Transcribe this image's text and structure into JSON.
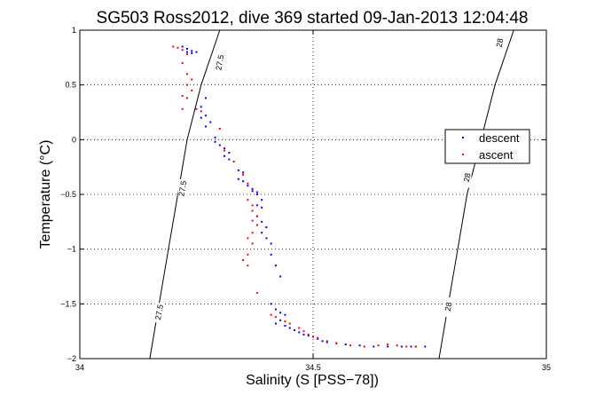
{
  "chart_data": {
    "type": "scatter",
    "title": "SG503 Ross2012, dive 369 started 09-Jan-2013 12:04:48",
    "xlabel": "Salinity (S [PSS−78])",
    "ylabel": "Temperature (°C)",
    "xlim": [
      34,
      35
    ],
    "ylim": [
      -2,
      1
    ],
    "xticks": [
      34,
      34.5,
      35
    ],
    "xtick_labels": [
      "34",
      "34.5",
      "35"
    ],
    "yticks": [
      -2,
      -1.5,
      -1,
      -0.5,
      0,
      0.5,
      1
    ],
    "ytick_labels": [
      "−2",
      "−1.5",
      "−1",
      "−0.5",
      "0",
      "0.5",
      "1"
    ],
    "grid": true,
    "legend_position": "right",
    "series": [
      {
        "name": "descent",
        "color": "#0000ff",
        "points": [
          [
            34.22,
            0.85
          ],
          [
            34.23,
            0.83
          ],
          [
            34.24,
            0.81
          ],
          [
            34.25,
            0.8
          ],
          [
            34.24,
            0.79
          ],
          [
            34.23,
            0.8
          ],
          [
            34.27,
            0.38
          ],
          [
            34.26,
            0.3
          ],
          [
            34.27,
            0.22
          ],
          [
            34.26,
            0.2
          ],
          [
            34.28,
            0.16
          ],
          [
            34.27,
            0.12
          ],
          [
            34.29,
            0.02
          ],
          [
            34.29,
            -0.02
          ],
          [
            34.3,
            -0.05
          ],
          [
            34.31,
            -0.08
          ],
          [
            34.32,
            -0.12
          ],
          [
            34.31,
            -0.15
          ],
          [
            34.32,
            -0.18
          ],
          [
            34.33,
            -0.2
          ],
          [
            34.34,
            -0.28
          ],
          [
            34.35,
            -0.3
          ],
          [
            34.34,
            -0.36
          ],
          [
            34.35,
            -0.38
          ],
          [
            34.36,
            -0.42
          ],
          [
            34.37,
            -0.45
          ],
          [
            34.37,
            -0.47
          ],
          [
            34.38,
            -0.48
          ],
          [
            34.38,
            -0.5
          ],
          [
            34.39,
            -0.55
          ],
          [
            34.38,
            -0.6
          ],
          [
            34.39,
            -0.62
          ],
          [
            34.38,
            -0.7
          ],
          [
            34.39,
            -0.75
          ],
          [
            34.4,
            -0.8
          ],
          [
            34.39,
            -0.85
          ],
          [
            34.4,
            -0.9
          ],
          [
            34.41,
            -0.95
          ],
          [
            34.41,
            -1.05
          ],
          [
            34.42,
            -1.15
          ],
          [
            34.43,
            -1.25
          ],
          [
            34.41,
            -1.5
          ],
          [
            34.42,
            -1.55
          ],
          [
            34.43,
            -1.58
          ],
          [
            34.44,
            -1.6
          ],
          [
            34.43,
            -1.65
          ],
          [
            34.42,
            -1.68
          ],
          [
            34.44,
            -1.7
          ],
          [
            34.45,
            -1.72
          ],
          [
            34.46,
            -1.74
          ],
          [
            34.47,
            -1.76
          ],
          [
            34.48,
            -1.78
          ],
          [
            34.49,
            -1.79
          ],
          [
            34.5,
            -1.8
          ],
          [
            34.51,
            -1.82
          ],
          [
            34.52,
            -1.84
          ],
          [
            34.53,
            -1.85
          ],
          [
            34.55,
            -1.86
          ],
          [
            34.57,
            -1.87
          ],
          [
            34.6,
            -1.88
          ],
          [
            34.63,
            -1.89
          ],
          [
            34.66,
            -1.89
          ],
          [
            34.69,
            -1.89
          ],
          [
            34.71,
            -1.89
          ],
          [
            34.72,
            -1.89
          ],
          [
            34.74,
            -1.89
          ]
        ]
      },
      {
        "name": "ascent",
        "color": "#ff0000",
        "points": [
          [
            34.2,
            0.85
          ],
          [
            34.21,
            0.84
          ],
          [
            34.22,
            0.82
          ],
          [
            34.23,
            0.78
          ],
          [
            34.22,
            0.7
          ],
          [
            34.23,
            0.6
          ],
          [
            34.24,
            0.55
          ],
          [
            34.23,
            0.5
          ],
          [
            34.24,
            0.45
          ],
          [
            34.22,
            0.4
          ],
          [
            34.23,
            0.38
          ],
          [
            34.22,
            0.28
          ],
          [
            34.25,
            0.28
          ],
          [
            34.26,
            0.26
          ],
          [
            34.3,
            0.1
          ],
          [
            34.31,
            -0.1
          ],
          [
            34.33,
            -0.2
          ],
          [
            34.35,
            -0.32
          ],
          [
            34.36,
            -0.4
          ],
          [
            34.36,
            -0.55
          ],
          [
            34.37,
            -0.6
          ],
          [
            34.37,
            -0.65
          ],
          [
            34.38,
            -0.7
          ],
          [
            34.37,
            -0.74
          ],
          [
            34.38,
            -0.78
          ],
          [
            34.37,
            -0.85
          ],
          [
            34.36,
            -0.9
          ],
          [
            34.37,
            -0.95
          ],
          [
            34.36,
            -1.05
          ],
          [
            34.35,
            -1.1
          ],
          [
            34.36,
            -1.15
          ],
          [
            34.38,
            -1.4
          ],
          [
            34.41,
            -1.6
          ],
          [
            34.42,
            -1.62
          ],
          [
            34.44,
            -1.66
          ],
          [
            34.45,
            -1.68
          ],
          [
            34.47,
            -1.72
          ],
          [
            34.48,
            -1.75
          ],
          [
            34.49,
            -1.78
          ],
          [
            34.5,
            -1.8
          ],
          [
            34.51,
            -1.81
          ],
          [
            34.53,
            -1.84
          ],
          [
            34.55,
            -1.86
          ],
          [
            34.58,
            -1.88
          ],
          [
            34.61,
            -1.89
          ],
          [
            34.64,
            -1.88
          ],
          [
            34.66,
            -1.87
          ],
          [
            34.68,
            -1.88
          ],
          [
            34.7,
            -1.89
          ],
          [
            34.72,
            -1.89
          ]
        ]
      }
    ],
    "contours": [
      {
        "label": "27.5",
        "points": [
          [
            34.15,
            -2
          ],
          [
            34.17,
            -1.5
          ],
          [
            34.19,
            -1
          ],
          [
            34.21,
            -0.5
          ],
          [
            34.23,
            0
          ],
          [
            34.26,
            0.5
          ],
          [
            34.3,
            1
          ]
        ]
      },
      {
        "label": "28",
        "points": [
          [
            34.77,
            -2
          ],
          [
            34.79,
            -1.5
          ],
          [
            34.81,
            -1
          ],
          [
            34.83,
            -0.5
          ],
          [
            34.86,
            0
          ],
          [
            34.89,
            0.5
          ],
          [
            34.93,
            1
          ]
        ]
      }
    ],
    "contour_labels": [
      {
        "text": "27.5",
        "x": 34.17,
        "y": -1.58
      },
      {
        "text": "27.5",
        "x": 34.22,
        "y": -0.45
      },
      {
        "text": "27.5",
        "x": 34.3,
        "y": 0.7
      },
      {
        "text": "28",
        "x": 34.79,
        "y": -1.53
      },
      {
        "text": "28",
        "x": 34.83,
        "y": -0.35
      },
      {
        "text": "28",
        "x": 34.9,
        "y": 0.88
      }
    ]
  }
}
